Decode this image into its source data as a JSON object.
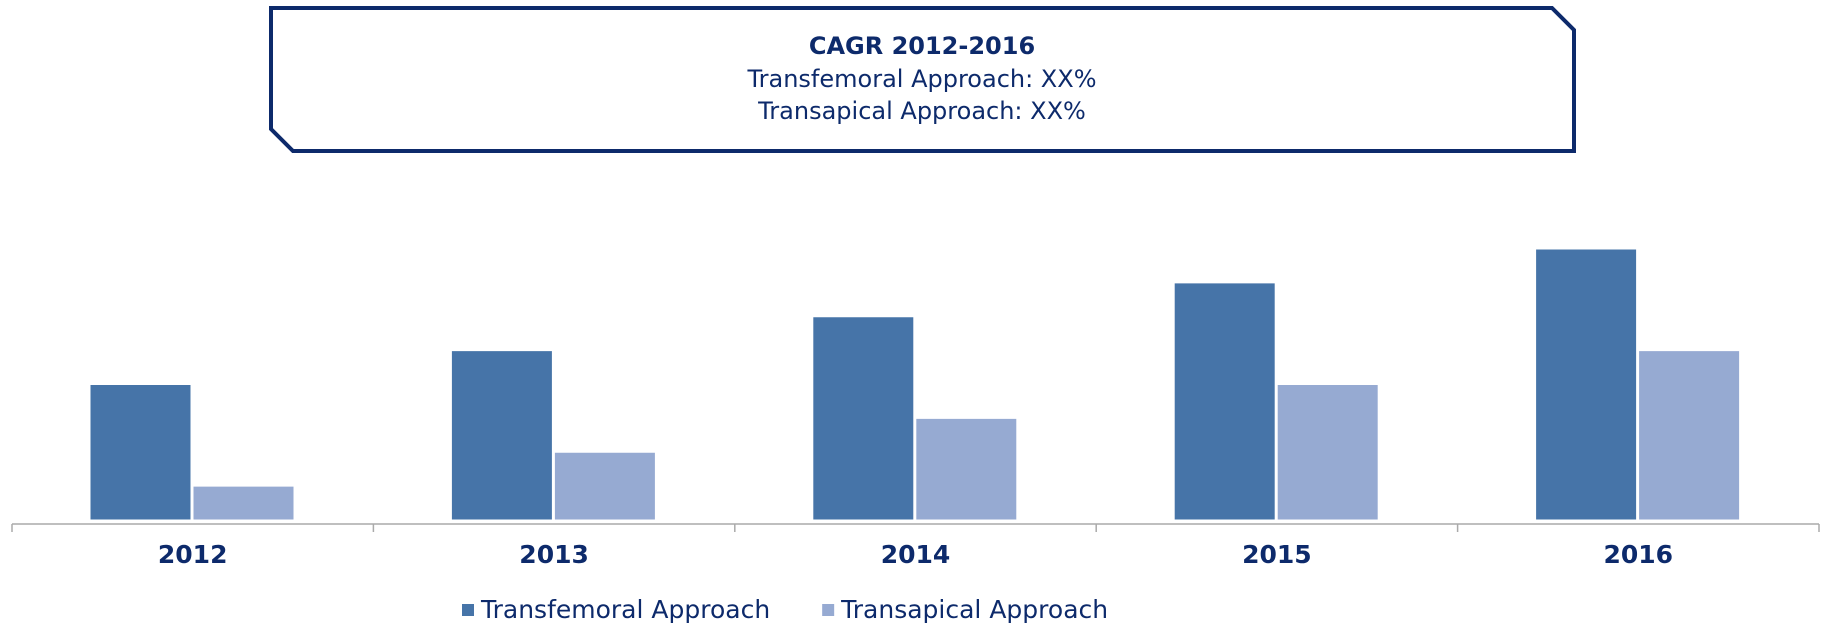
{
  "chart_data": {
    "type": "bar",
    "annotation": {
      "title": "CAGR 2012-2016",
      "lines": [
        "Transfemoral Approach: XX%",
        "Transapical Approach: XX%"
      ]
    },
    "categories": [
      "2012",
      "2013",
      "2014",
      "2015",
      "2016"
    ],
    "series": [
      {
        "name": "Transfemoral Approach",
        "color": "#4674a8",
        "values": [
          4,
          5,
          6,
          7,
          8
        ]
      },
      {
        "name": "Transapical Approach",
        "color": "#96aad2",
        "values": [
          1,
          2,
          3,
          4,
          5
        ]
      }
    ],
    "ylim": [
      0,
      8
    ]
  }
}
